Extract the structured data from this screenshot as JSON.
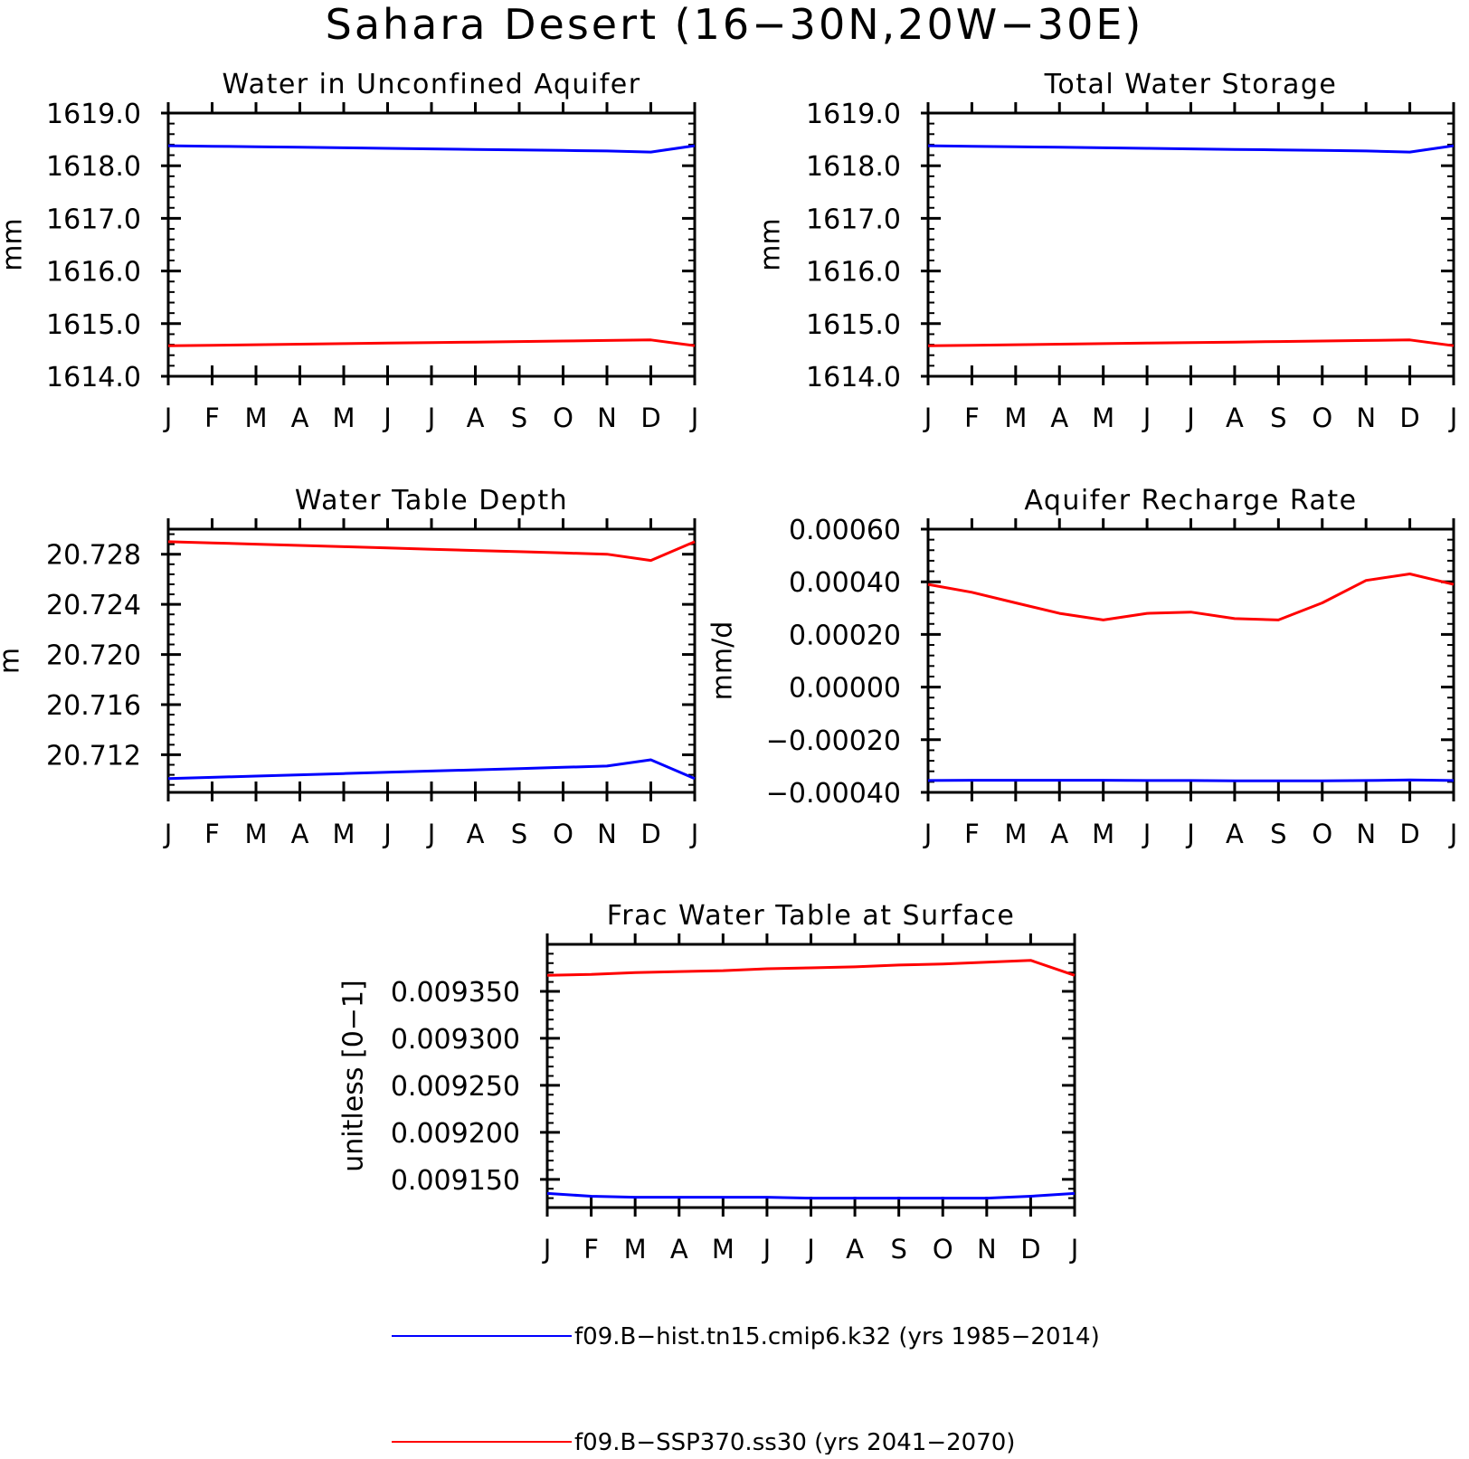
{
  "figure": {
    "title": "Sahara Desert (16−30N,20W−30E)",
    "month_labels": [
      "J",
      "F",
      "M",
      "A",
      "M",
      "J",
      "J",
      "A",
      "S",
      "O",
      "N",
      "D",
      "J"
    ]
  },
  "legend": {
    "placement": "bottom-center",
    "entries": [
      {
        "label": "f09.B−hist.tn15.cmip6.k32 (yrs 1985−2014)",
        "color": "#0000ff"
      },
      {
        "label": "f09.B−SSP370.ss30 (yrs 2041−2070)",
        "color": "#ff0000"
      }
    ]
  },
  "chart_data": [
    {
      "type": "line",
      "title": "Water in Unconfined Aquifer",
      "ylabel": "mm",
      "ylim": [
        1614.0,
        1619.0
      ],
      "yticks": [
        1614.0,
        1615.0,
        1616.0,
        1617.0,
        1618.0,
        1619.0
      ],
      "ytick_labels": [
        "1614.0",
        "1615.0",
        "1616.0",
        "1617.0",
        "1618.0",
        "1619.0"
      ],
      "categories": [
        "J",
        "F",
        "M",
        "A",
        "M",
        "J",
        "J",
        "A",
        "S",
        "O",
        "N",
        "D",
        "J"
      ],
      "series": [
        {
          "color": "#0000ff",
          "values": [
            1618.38,
            1618.37,
            1618.36,
            1618.35,
            1618.34,
            1618.33,
            1618.32,
            1618.31,
            1618.3,
            1618.29,
            1618.28,
            1618.26,
            1618.38
          ]
        },
        {
          "color": "#ff0000",
          "values": [
            1614.58,
            1614.59,
            1614.6,
            1614.61,
            1614.62,
            1614.63,
            1614.64,
            1614.65,
            1614.66,
            1614.67,
            1614.68,
            1614.69,
            1614.58
          ]
        }
      ]
    },
    {
      "type": "line",
      "title": "Total Water Storage",
      "ylabel": "mm",
      "ylim": [
        1614.0,
        1619.0
      ],
      "yticks": [
        1614.0,
        1615.0,
        1616.0,
        1617.0,
        1618.0,
        1619.0
      ],
      "ytick_labels": [
        "1614.0",
        "1615.0",
        "1616.0",
        "1617.0",
        "1618.0",
        "1619.0"
      ],
      "categories": [
        "J",
        "F",
        "M",
        "A",
        "M",
        "J",
        "J",
        "A",
        "S",
        "O",
        "N",
        "D",
        "J"
      ],
      "series": [
        {
          "color": "#0000ff",
          "values": [
            1618.38,
            1618.37,
            1618.36,
            1618.35,
            1618.34,
            1618.33,
            1618.32,
            1618.31,
            1618.3,
            1618.29,
            1618.28,
            1618.26,
            1618.38
          ]
        },
        {
          "color": "#ff0000",
          "values": [
            1614.58,
            1614.59,
            1614.6,
            1614.61,
            1614.62,
            1614.63,
            1614.64,
            1614.65,
            1614.66,
            1614.67,
            1614.68,
            1614.69,
            1614.58
          ]
        }
      ]
    },
    {
      "type": "line",
      "title": "Water Table Depth",
      "ylabel": "m",
      "ylim": [
        20.709,
        20.73
      ],
      "yticks": [
        20.712,
        20.716,
        20.72,
        20.724,
        20.728
      ],
      "ytick_labels": [
        "20.712",
        "20.716",
        "20.720",
        "20.724",
        "20.728"
      ],
      "categories": [
        "J",
        "F",
        "M",
        "A",
        "M",
        "J",
        "J",
        "A",
        "S",
        "O",
        "N",
        "D",
        "J"
      ],
      "series": [
        {
          "color": "#0000ff",
          "values": [
            20.7101,
            20.7102,
            20.7103,
            20.7104,
            20.7105,
            20.7106,
            20.7107,
            20.7108,
            20.7109,
            20.711,
            20.7111,
            20.7116,
            20.7101
          ]
        },
        {
          "color": "#ff0000",
          "values": [
            20.729,
            20.7289,
            20.7288,
            20.7287,
            20.7286,
            20.7285,
            20.7284,
            20.7283,
            20.7282,
            20.7281,
            20.728,
            20.7275,
            20.729
          ]
        }
      ]
    },
    {
      "type": "line",
      "title": "Aquifer Recharge Rate",
      "ylabel": "mm/d",
      "ylim": [
        -0.0004,
        0.0006
      ],
      "yticks": [
        -0.0004,
        -0.0002,
        0.0,
        0.0002,
        0.0004,
        0.0006
      ],
      "ytick_labels": [
        "−0.00040",
        "−0.00020",
        "0.00000",
        "0.00020",
        "0.00040",
        "0.00060"
      ],
      "categories": [
        "J",
        "F",
        "M",
        "A",
        "M",
        "J",
        "J",
        "A",
        "S",
        "O",
        "N",
        "D",
        "J"
      ],
      "series": [
        {
          "color": "#0000ff",
          "values": [
            -0.000355,
            -0.000354,
            -0.000354,
            -0.000354,
            -0.000354,
            -0.000355,
            -0.000355,
            -0.000356,
            -0.000356,
            -0.000356,
            -0.000355,
            -0.000353,
            -0.000355
          ]
        },
        {
          "color": "#ff0000",
          "values": [
            0.00039,
            0.00036,
            0.00032,
            0.00028,
            0.000255,
            0.00028,
            0.000285,
            0.00026,
            0.000255,
            0.00032,
            0.000405,
            0.00043,
            0.00039
          ]
        }
      ]
    },
    {
      "type": "line",
      "title": "Frac Water Table at Surface",
      "ylabel": "unitless [0−1]",
      "ylim": [
        0.00912,
        0.0094
      ],
      "yticks": [
        0.00915,
        0.0092,
        0.00925,
        0.0093,
        0.00935
      ],
      "ytick_labels": [
        "0.009150",
        "0.009200",
        "0.009250",
        "0.009300",
        "0.009350"
      ],
      "categories": [
        "J",
        "F",
        "M",
        "A",
        "M",
        "J",
        "J",
        "A",
        "S",
        "O",
        "N",
        "D",
        "J"
      ],
      "series": [
        {
          "color": "#0000ff",
          "values": [
            0.009135,
            0.009132,
            0.009131,
            0.009131,
            0.009131,
            0.009131,
            0.00913,
            0.00913,
            0.00913,
            0.00913,
            0.00913,
            0.009132,
            0.009135
          ]
        },
        {
          "color": "#ff0000",
          "values": [
            0.009367,
            0.009368,
            0.00937,
            0.009371,
            0.009372,
            0.009374,
            0.009375,
            0.009376,
            0.009378,
            0.009379,
            0.009381,
            0.009383,
            0.009367
          ]
        }
      ]
    }
  ]
}
